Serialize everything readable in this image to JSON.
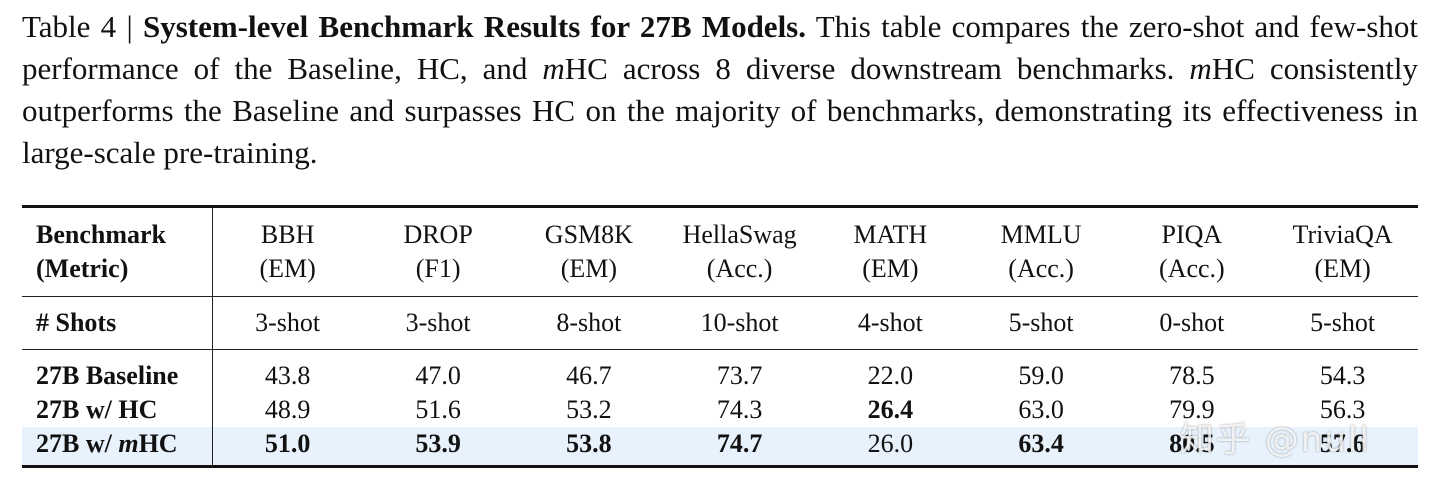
{
  "caption": {
    "label": "Table 4 | ",
    "title": "System-level Benchmark Results for 27B Models.",
    "text_1": " This table compares the zero-shot and few-shot performance of the Baseline, HC, and ",
    "m1": "m",
    "text_2": "HC across 8 diverse downstream benchmarks. ",
    "m2": "m",
    "text_3": "HC consistently outperforms the Baseline and surpasses HC on the majority of benchmarks, demonstrating its effectiveness in large-scale pre-training."
  },
  "table": {
    "header_label_line1": "Benchmark",
    "header_label_line2": "(Metric)",
    "columns": [
      {
        "name": "BBH",
        "metric": "(EM)",
        "shots": "3-shot"
      },
      {
        "name": "DROP",
        "metric": "(F1)",
        "shots": "3-shot"
      },
      {
        "name": "GSM8K",
        "metric": "(EM)",
        "shots": "8-shot"
      },
      {
        "name": "HellaSwag",
        "metric": "(Acc.)",
        "shots": "10-shot"
      },
      {
        "name": "MATH",
        "metric": "(EM)",
        "shots": "4-shot"
      },
      {
        "name": "MMLU",
        "metric": "(Acc.)",
        "shots": "5-shot"
      },
      {
        "name": "PIQA",
        "metric": "(Acc.)",
        "shots": "0-shot"
      },
      {
        "name": "TriviaQA",
        "metric": "(EM)",
        "shots": "5-shot"
      }
    ],
    "shots_label": "# Shots",
    "rows": [
      {
        "model": "27B Baseline",
        "values": [
          "43.8",
          "47.0",
          "46.7",
          "73.7",
          "22.0",
          "59.0",
          "78.5",
          "54.3"
        ]
      },
      {
        "model": "27B w/ HC",
        "values": [
          "48.9",
          "51.6",
          "53.2",
          "74.3",
          "26.4",
          "63.0",
          "79.9",
          "56.3"
        ]
      },
      {
        "model_prefix": "27B w/ ",
        "model_m": "m",
        "model_suffix": "HC",
        "values": [
          "51.0",
          "53.9",
          "53.8",
          "74.7",
          "26.0",
          "63.4",
          "80.5",
          "57.6"
        ]
      }
    ]
  },
  "watermark": "知乎 @null"
}
